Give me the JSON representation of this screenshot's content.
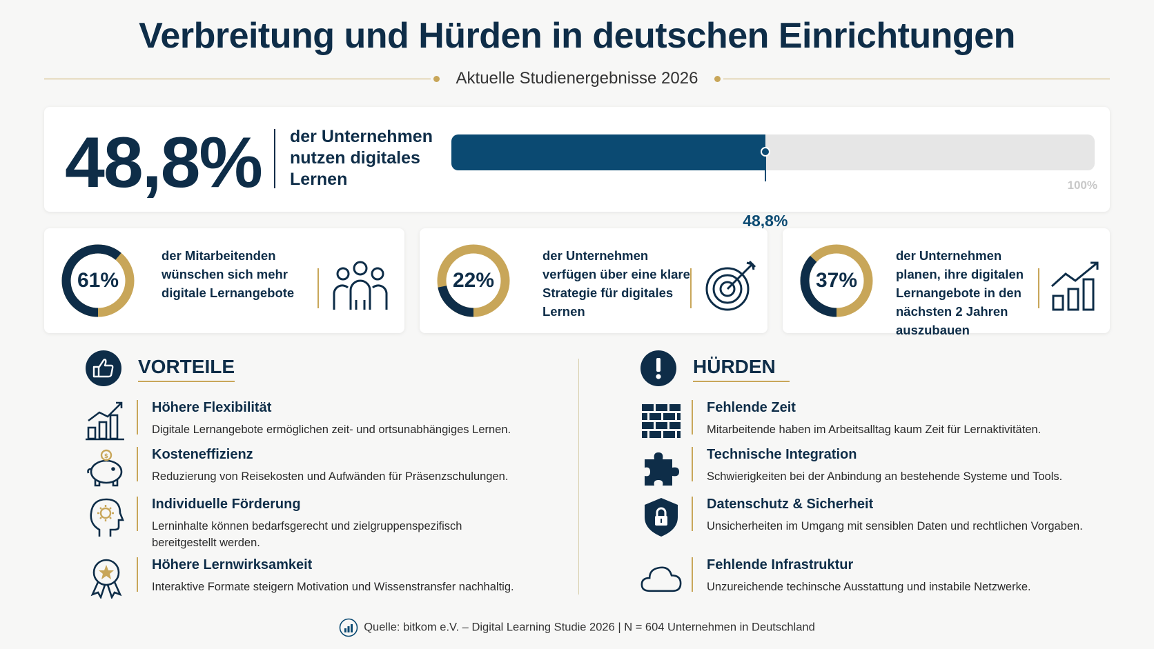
{
  "title": "Verbreitung und Hürden in deutschen Einrichtungen",
  "subtitle": "Aktuelle Studienergebnisse 2026",
  "colors": {
    "navy": "#0e2d48",
    "blue": "#0b4a72",
    "gold": "#c8a659",
    "track": "#e6e6e6"
  },
  "hero": {
    "value_text": "48,8%",
    "description": "der Unternehmen nutzen digitales Lernen",
    "progress": 48.8,
    "marker_label": "48,8%",
    "max_label": "100%"
  },
  "stats": [
    {
      "value": 61,
      "label": "61%",
      "text": "der Mitarbeitenden wünschen sich mehr digitale Lernangebote",
      "icon": "people-group-icon"
    },
    {
      "value": 22,
      "label": "22%",
      "text": "der Unternehmen verfügen über eine klare Strategie für digitales Lernen",
      "icon": "target-icon"
    },
    {
      "value": 37,
      "label": "37%",
      "text": "der Unternehmen planen, ihre digitalen Lernangebote in den nächsten 2 Jahren auszubauen",
      "icon": "growth-chart-icon"
    }
  ],
  "vorteile": {
    "heading": "VORTEILE",
    "icon": "thumbs-up-icon",
    "items": [
      {
        "title": "Höhere Flexibilität",
        "text": "Digitale Lernangebote ermöglichen zeit- und ortsunabhängiges Lernen.",
        "icon": "bar-chart-icon"
      },
      {
        "title": "Kosteneffizienz",
        "text": "Reduzierung von Reisekosten und Aufwänden für Präsenzschulungen.",
        "icon": "piggy-bank-icon"
      },
      {
        "title": "Individuelle Förderung",
        "text": "Lerninhalte können bedarfsgerecht und zielgruppenspezifisch bereitgestellt werden.",
        "icon": "head-gear-icon"
      },
      {
        "title": "Höhere Lernwirksamkeit",
        "text": "Interaktive Formate steigern Motivation und Wissenstransfer nachhaltig.",
        "icon": "award-icon"
      }
    ]
  },
  "huerden": {
    "heading": "HÜRDEN",
    "icon": "exclamation-icon",
    "items": [
      {
        "title": "Fehlende Zeit",
        "text": "Mitarbeitende haben im Arbeitsalltag kaum Zeit für Lernaktivitäten.",
        "icon": "brick-wall-icon"
      },
      {
        "title": "Technische Integration",
        "text": "Schwierigkeiten bei der Anbindung an bestehende Systeme und Tools.",
        "icon": "puzzle-icon"
      },
      {
        "title": "Datenschutz & Sicherheit",
        "text": "Unsicherheiten im Umgang mit sensiblen Daten und rechtlichen Vorgaben.",
        "icon": "shield-lock-icon"
      },
      {
        "title": "Fehlende Infrastruktur",
        "text": "Unzureichende techinsche Ausstattung und instabile Netzwerke.",
        "icon": "cloud-icon"
      }
    ]
  },
  "footer": {
    "icon": "chart-circle-icon",
    "text": "Quelle: bitkom e.V. – Digital Learning Studie 2026 | N = 604 Unternehmen in Deutschland"
  }
}
